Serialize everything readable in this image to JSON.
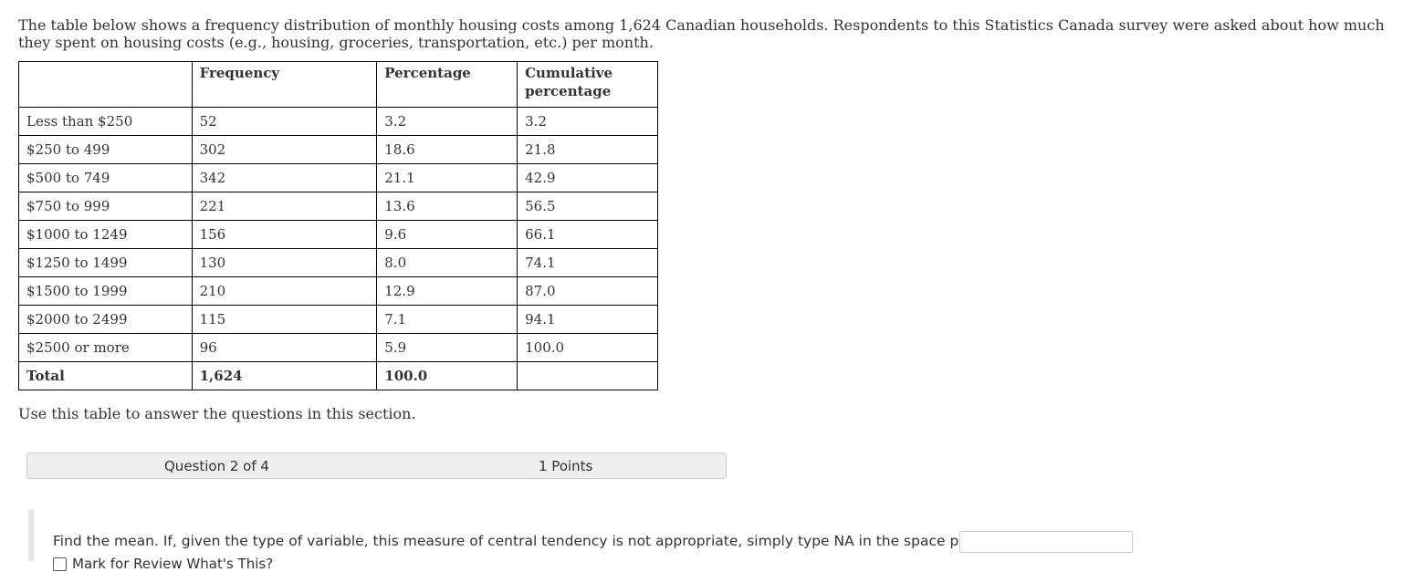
{
  "intro_text": "The table below shows a frequency distribution of monthly housing costs among 1,624 Canadian households. Respondents to this Statistics Canada survey were asked about how much they spent on housing costs (e.g., housing, groceries, transportation, etc.) per month.",
  "table": {
    "headers": [
      "",
      "Frequency",
      "Percentage",
      "Cumulative percentage"
    ],
    "rows": [
      [
        "Less than $250",
        "52",
        "3.2",
        "3.2"
      ],
      [
        "$250 to 499",
        "302",
        "18.6",
        "21.8"
      ],
      [
        "$500 to 749",
        "342",
        "21.1",
        "42.9"
      ],
      [
        "$750 to 999",
        "221",
        "13.6",
        "56.5"
      ],
      [
        "$1000 to 1249",
        "156",
        "9.6",
        "66.1"
      ],
      [
        "$1250 to 1499",
        "130",
        "8.0",
        "74.1"
      ],
      [
        "$1500 to 1999",
        "210",
        "12.9",
        "87.0"
      ],
      [
        "$2000 to 2499",
        "115",
        "7.1",
        "94.1"
      ],
      [
        "$2500 or more",
        "96",
        "5.9",
        "100.0"
      ]
    ],
    "total": [
      "Total",
      "1,624",
      "100.0",
      ""
    ]
  },
  "use_note": "Use this table to answer the questions in this section.",
  "question_bar": {
    "number": "Question 2 of 4",
    "points": "1 Points"
  },
  "question": {
    "text": "Find the mean. If, given the type of variable, this measure of central tendency is not appropriate, simply type NA in the space provided.",
    "answer_value": "",
    "mark_label": "Mark for Review What's This?"
  }
}
